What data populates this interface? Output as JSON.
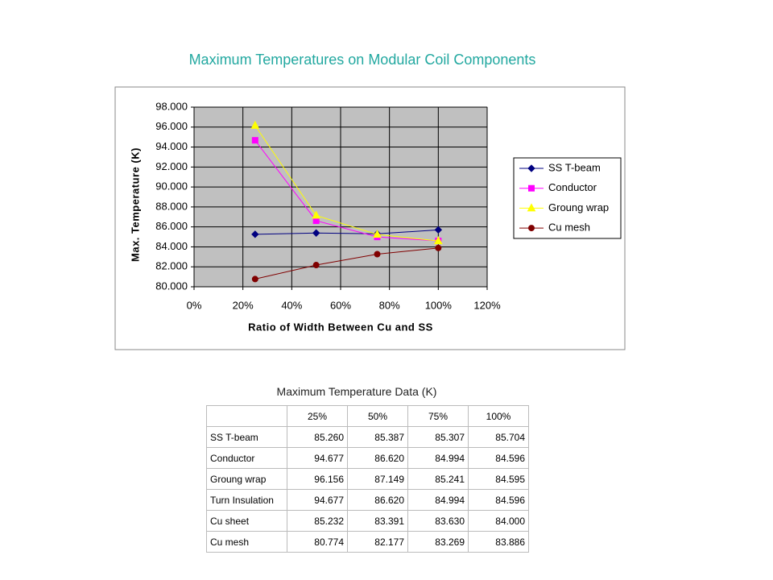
{
  "chart_data": {
    "type": "line",
    "title": "Maximum Temperatures on Modular Coil Components",
    "x_label": "Ratio of Width Between Cu and SS",
    "y_label": "Max. Temperature (K)",
    "x": [
      0.25,
      0.5,
      0.75,
      1.0
    ],
    "xlim": [
      0,
      1.2
    ],
    "xticks": [
      {
        "value": 0,
        "label": "0%"
      },
      {
        "value": 0.2,
        "label": "20%"
      },
      {
        "value": 0.4,
        "label": "40%"
      },
      {
        "value": 0.6,
        "label": "60%"
      },
      {
        "value": 0.8,
        "label": "80%"
      },
      {
        "value": 1.0,
        "label": "100%"
      },
      {
        "value": 1.2,
        "label": "120%"
      }
    ],
    "ylim": [
      80,
      98
    ],
    "yticks": [
      {
        "value": 80,
        "label": "80.000"
      },
      {
        "value": 82,
        "label": "82.000"
      },
      {
        "value": 84,
        "label": "84.000"
      },
      {
        "value": 86,
        "label": "86.000"
      },
      {
        "value": 88,
        "label": "88.000"
      },
      {
        "value": 90,
        "label": "90.000"
      },
      {
        "value": 92,
        "label": "92.000"
      },
      {
        "value": 94,
        "label": "94.000"
      },
      {
        "value": 96,
        "label": "96.000"
      },
      {
        "value": 98,
        "label": "98.000"
      }
    ],
    "grid": true,
    "legend": "right",
    "series": [
      {
        "name": "SS T-beam",
        "color": "#000080",
        "marker": "diamond",
        "values": [
          85.26,
          85.387,
          85.307,
          85.704
        ]
      },
      {
        "name": "Conductor",
        "color": "#ff00ff",
        "marker": "square",
        "values": [
          94.677,
          86.62,
          84.994,
          84.596
        ]
      },
      {
        "name": "Groung wrap",
        "color": "#ffff00",
        "marker": "triangle",
        "values": [
          96.156,
          87.149,
          85.241,
          84.595
        ]
      },
      {
        "name": "Cu mesh",
        "color": "#800000",
        "marker": "circle",
        "values": [
          80.774,
          82.177,
          83.269,
          83.886
        ]
      }
    ]
  },
  "table": {
    "title": "Maximum Temperature Data (K)",
    "columns": [
      "25%",
      "50%",
      "75%",
      "100%"
    ],
    "rows": [
      [
        "SS T-beam",
        "85.260",
        "85.387",
        "85.307",
        "85.704"
      ],
      [
        "Conductor",
        "94.677",
        "86.620",
        "84.994",
        "84.596"
      ],
      [
        "Groung wrap",
        "96.156",
        "87.149",
        "85.241",
        "84.595"
      ],
      [
        "Turn Insulation",
        "94.677",
        "86.620",
        "84.994",
        "84.596"
      ],
      [
        "Cu sheet",
        "85.232",
        "83.391",
        "83.630",
        "84.000"
      ],
      [
        "Cu mesh",
        "80.774",
        "82.177",
        "83.269",
        "83.886"
      ]
    ]
  }
}
